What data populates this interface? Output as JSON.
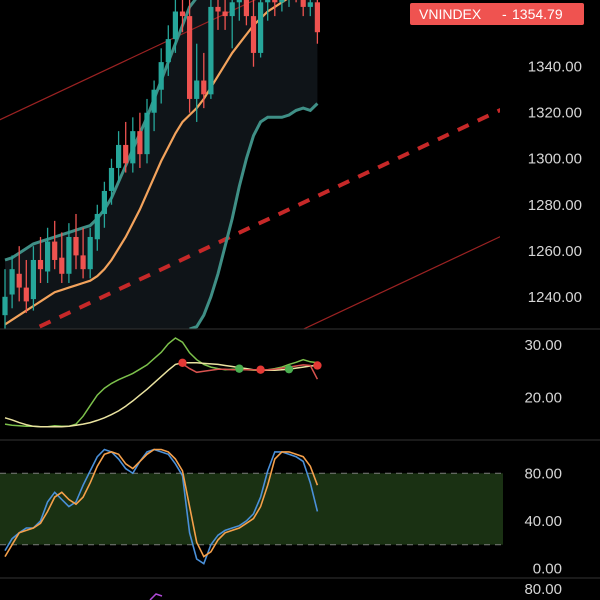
{
  "chart_data": [
    {
      "type": "candlestick",
      "panel": "price",
      "symbol": "VNINDEX",
      "last_price_label": "1354.79",
      "separator": "-",
      "y_ticks": [
        "1340.00",
        "1320.00",
        "1300.00",
        "1280.00",
        "1260.00",
        "1240.00"
      ],
      "ylim": [
        1226,
        1369
      ],
      "colors": {
        "up": "#26a69a",
        "down": "#ef5350",
        "badge": "#ef5350",
        "basis": "#f3a35c",
        "band": "#3f8f86",
        "channel": "#9b2222",
        "channel_mid": "#c62828"
      },
      "candles": [
        {
          "o": 1232,
          "h": 1252,
          "l": 1226,
          "c": 1240
        },
        {
          "o": 1241,
          "h": 1258,
          "l": 1235,
          "c": 1252
        },
        {
          "o": 1250,
          "h": 1262,
          "l": 1238,
          "c": 1244
        },
        {
          "o": 1244,
          "h": 1256,
          "l": 1233,
          "c": 1238
        },
        {
          "o": 1239,
          "h": 1262,
          "l": 1234,
          "c": 1256
        },
        {
          "o": 1256,
          "h": 1266,
          "l": 1246,
          "c": 1252
        },
        {
          "o": 1251,
          "h": 1270,
          "l": 1246,
          "c": 1264
        },
        {
          "o": 1264,
          "h": 1273,
          "l": 1252,
          "c": 1256
        },
        {
          "o": 1257,
          "h": 1268,
          "l": 1246,
          "c": 1250
        },
        {
          "o": 1250,
          "h": 1272,
          "l": 1246,
          "c": 1266
        },
        {
          "o": 1266,
          "h": 1276,
          "l": 1252,
          "c": 1258
        },
        {
          "o": 1258,
          "h": 1270,
          "l": 1248,
          "c": 1252
        },
        {
          "o": 1252,
          "h": 1270,
          "l": 1248,
          "c": 1266
        },
        {
          "o": 1265,
          "h": 1280,
          "l": 1260,
          "c": 1276
        },
        {
          "o": 1276,
          "h": 1290,
          "l": 1270,
          "c": 1286
        },
        {
          "o": 1286,
          "h": 1300,
          "l": 1280,
          "c": 1296
        },
        {
          "o": 1296,
          "h": 1312,
          "l": 1290,
          "c": 1306
        },
        {
          "o": 1306,
          "h": 1316,
          "l": 1294,
          "c": 1298
        },
        {
          "o": 1298,
          "h": 1318,
          "l": 1294,
          "c": 1312
        },
        {
          "o": 1312,
          "h": 1320,
          "l": 1296,
          "c": 1302
        },
        {
          "o": 1302,
          "h": 1326,
          "l": 1298,
          "c": 1320
        },
        {
          "o": 1320,
          "h": 1334,
          "l": 1312,
          "c": 1330
        },
        {
          "o": 1330,
          "h": 1348,
          "l": 1324,
          "c": 1342
        },
        {
          "o": 1342,
          "h": 1358,
          "l": 1336,
          "c": 1352
        },
        {
          "o": 1352,
          "h": 1370,
          "l": 1346,
          "c": 1364
        },
        {
          "o": 1364,
          "h": 1372,
          "l": 1355,
          "c": 1362
        },
        {
          "o": 1362,
          "h": 1370,
          "l": 1320,
          "c": 1326
        },
        {
          "o": 1326,
          "h": 1350,
          "l": 1316,
          "c": 1334
        },
        {
          "o": 1334,
          "h": 1346,
          "l": 1322,
          "c": 1328
        },
        {
          "o": 1328,
          "h": 1372,
          "l": 1326,
          "c": 1366
        },
        {
          "o": 1366,
          "h": 1372,
          "l": 1356,
          "c": 1364
        },
        {
          "o": 1364,
          "h": 1372,
          "l": 1356,
          "c": 1362
        },
        {
          "o": 1362,
          "h": 1372,
          "l": 1348,
          "c": 1368
        },
        {
          "o": 1368,
          "h": 1374,
          "l": 1360,
          "c": 1372
        },
        {
          "o": 1372,
          "h": 1378,
          "l": 1358,
          "c": 1362
        },
        {
          "o": 1362,
          "h": 1370,
          "l": 1340,
          "c": 1346
        },
        {
          "o": 1346,
          "h": 1372,
          "l": 1344,
          "c": 1368
        },
        {
          "o": 1368,
          "h": 1376,
          "l": 1360,
          "c": 1372
        },
        {
          "o": 1372,
          "h": 1376,
          "l": 1362,
          "c": 1368
        },
        {
          "o": 1368,
          "h": 1374,
          "l": 1364,
          "c": 1370
        },
        {
          "o": 1370,
          "h": 1374,
          "l": 1366,
          "c": 1372
        },
        {
          "o": 1372,
          "h": 1374,
          "l": 1368,
          "c": 1370
        },
        {
          "o": 1370,
          "h": 1374,
          "l": 1362,
          "c": 1366
        },
        {
          "o": 1366,
          "h": 1372,
          "l": 1362,
          "c": 1368
        },
        {
          "o": 1368,
          "h": 1370,
          "l": 1350,
          "c": 1355
        }
      ],
      "bb_upper": [
        1256,
        1257,
        1259,
        1261,
        1263,
        1264,
        1265,
        1266,
        1267,
        1268,
        1269,
        1270,
        1271,
        1274,
        1278,
        1283,
        1290,
        1297,
        1304,
        1311,
        1318,
        1326,
        1334,
        1342,
        1350,
        1358,
        1366,
        1370,
        1371,
        1372,
        1373,
        1374,
        1374,
        1374,
        1374,
        1374,
        1374,
        1374,
        1374,
        1374,
        1374,
        1374,
        1374,
        1374,
        1374
      ],
      "bb_basis": [
        1228,
        1230,
        1232,
        1234,
        1236,
        1238,
        1240,
        1242,
        1243,
        1244,
        1245,
        1246,
        1247,
        1249,
        1252,
        1256,
        1261,
        1266,
        1272,
        1278,
        1285,
        1292,
        1299,
        1305,
        1311,
        1316,
        1319,
        1322,
        1326,
        1331,
        1336,
        1341,
        1346,
        1350,
        1354,
        1358,
        1361,
        1364,
        1366,
        1368,
        1370,
        1372,
        1374,
        1376,
        1378
      ],
      "bb_lower": [
        null,
        null,
        null,
        null,
        null,
        null,
        null,
        null,
        null,
        null,
        null,
        null,
        null,
        null,
        null,
        null,
        null,
        null,
        null,
        null,
        null,
        null,
        null,
        null,
        null,
        null,
        1226,
        1227,
        1232,
        1240,
        1250,
        1262,
        1274,
        1288,
        1300,
        1310,
        1316,
        1318,
        1318,
        1318,
        1319,
        1321,
        1322,
        1321,
        1324
      ],
      "channel_upper": {
        "start": 1318,
        "slope": 1.45
      },
      "channel_mid": {
        "start": 1220,
        "slope": 1.45
      },
      "channel_lower": {
        "start": 1165,
        "slope": 1.45
      }
    },
    {
      "type": "line",
      "panel": "indicator",
      "y_ticks": [
        "30.00",
        "20.00"
      ],
      "ylim": [
        12,
        33
      ],
      "series": [
        {
          "color": "#7cc04b",
          "values": [
            15,
            14.8,
            14.7,
            14.6,
            14.6,
            14.5,
            14.5,
            14.7,
            14.6,
            14.6,
            15,
            16.5,
            18.5,
            20.5,
            21.8,
            22.7,
            23.4,
            24,
            24.6,
            25.4,
            26.2,
            27.4,
            28.6,
            30.2,
            31.3,
            30.5,
            28.5,
            27.2,
            26.3,
            25.8,
            25.5,
            25.3,
            25.4,
            25.4,
            25.3,
            25.2,
            25.2,
            25.3,
            25.5,
            25.8,
            26.3,
            26.7,
            27.2,
            26.8,
            26.6
          ]
        },
        {
          "color": "#eae3a0",
          "values": [
            16.2,
            15.8,
            15.3,
            14.9,
            14.6,
            14.5,
            14.5,
            14.5,
            14.5,
            14.6,
            14.8,
            15,
            15.3,
            15.7,
            16.2,
            16.8,
            17.5,
            18.4,
            19.4,
            20.5,
            21.6,
            22.8,
            24,
            25.2,
            26.3,
            26.6,
            26.6,
            26.6,
            26.5,
            26.4,
            26.3,
            26.1,
            25.9,
            25.7,
            25.5,
            25.3,
            25.2,
            25.2,
            25.2,
            25.3,
            25.4,
            25.6,
            25.8,
            26,
            26.1
          ]
        },
        {
          "color": "#d9534f",
          "values": [
            null,
            null,
            null,
            null,
            null,
            null,
            null,
            null,
            null,
            null,
            null,
            null,
            null,
            null,
            null,
            null,
            null,
            null,
            null,
            null,
            null,
            null,
            null,
            null,
            null,
            26.4,
            25.5,
            24.8,
            25,
            25.2,
            25.4,
            25.4,
            25.3,
            25.3,
            25.3,
            25.3,
            25.2,
            25.3,
            25.4,
            25.6,
            25.8,
            26,
            26.2,
            26.1,
            23.5
          ]
        }
      ],
      "dots": [
        {
          "i": 25,
          "v": 26.6,
          "color": "#e53935"
        },
        {
          "i": 33,
          "v": 25.5,
          "color": "#4caf50"
        },
        {
          "i": 36,
          "v": 25.3,
          "color": "#e53935"
        },
        {
          "i": 40,
          "v": 25.4,
          "color": "#4caf50"
        },
        {
          "i": 44,
          "v": 26.1,
          "color": "#e53935"
        }
      ]
    },
    {
      "type": "line",
      "panel": "stochastic",
      "y_ticks": [
        "80.00",
        "40.00",
        "0.00"
      ],
      "ylim": [
        -8,
        108
      ],
      "band": [
        20,
        80
      ],
      "band_color": "#1f3a16",
      "series": [
        {
          "color": "#4a90d9",
          "values": [
            15,
            25,
            30,
            34,
            34,
            40,
            56,
            64,
            58,
            52,
            56,
            70,
            82,
            94,
            100,
            98,
            92,
            84,
            80,
            90,
            98,
            100,
            98,
            96,
            88,
            78,
            30,
            8,
            4,
            20,
            28,
            32,
            34,
            36,
            40,
            46,
            60,
            82,
            98,
            98,
            96,
            94,
            90,
            72,
            48
          ]
        },
        {
          "color": "#f5a04a",
          "values": [
            10,
            20,
            30,
            32,
            34,
            38,
            48,
            60,
            64,
            58,
            54,
            60,
            72,
            86,
            96,
            98,
            96,
            88,
            84,
            90,
            96,
            100,
            100,
            98,
            92,
            82,
            52,
            22,
            10,
            14,
            24,
            30,
            32,
            34,
            38,
            42,
            52,
            70,
            92,
            98,
            98,
            96,
            94,
            86,
            70
          ]
        }
      ]
    },
    {
      "type": "line",
      "panel": "bottom",
      "y_ticks": [
        "80.00"
      ],
      "ylim": [
        0,
        100
      ]
    }
  ]
}
